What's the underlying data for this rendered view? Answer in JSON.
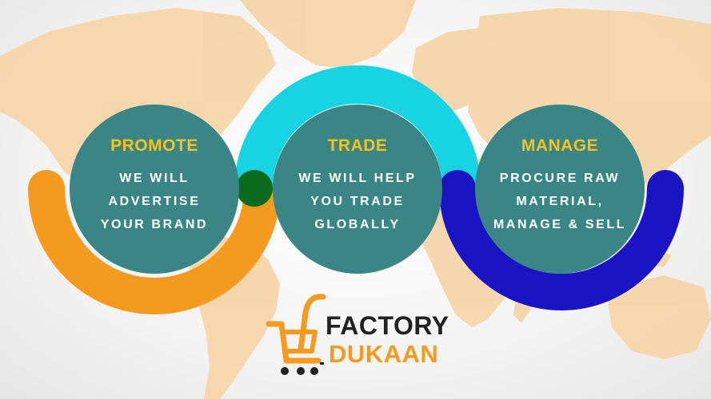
{
  "cards": [
    {
      "title": "PROMOTE",
      "lines": [
        "WE WILL",
        "ADVERTISE",
        "YOUR BRAND"
      ]
    },
    {
      "title": "TRADE",
      "lines": [
        "WE WILL HELP",
        "YOU TRADE",
        "GLOBALLY"
      ]
    },
    {
      "title": "MANAGE",
      "lines": [
        "PROCURE RAW",
        "MATERIAL,",
        "MANAGE & SELL"
      ]
    }
  ],
  "logo": {
    "line1": "FACTORY",
    "line2": "DUKAAN",
    "icon": "cart-icon"
  },
  "colors": {
    "teal": "#3a8585",
    "yellow": "#f7c31a",
    "orange": "#f39a1f",
    "cyan": "#17d3e3",
    "blue": "#1a14c4",
    "map": "#f5d7ae"
  }
}
